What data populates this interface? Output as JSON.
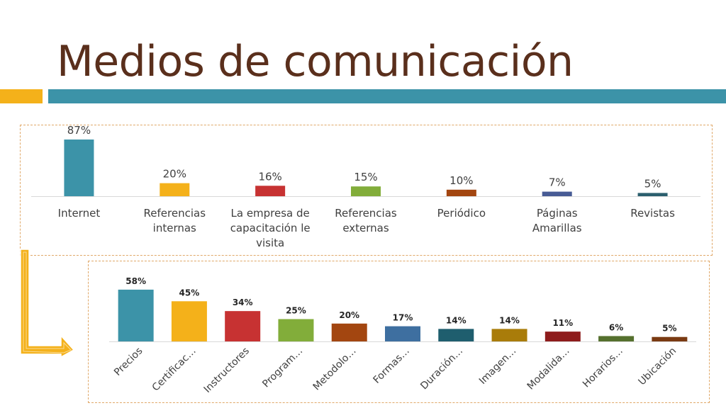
{
  "slide": {
    "title": "Medios de comunicación"
  },
  "colors": {
    "accent": "#f4b11a",
    "band": "#3c93a8",
    "title": "#5a2f1c",
    "arrow": "#f4b11a"
  },
  "chart_data": [
    {
      "type": "bar",
      "categories": [
        "Internet",
        "Referencias internas",
        "La empresa de capacitación le visita",
        "Referencias externas",
        "Periódico",
        "Páginas Amarillas",
        "Revistas"
      ],
      "category_lines": [
        [
          "Internet"
        ],
        [
          "Referencias",
          "internas"
        ],
        [
          "La empresa de",
          "capacitación le",
          "visita"
        ],
        [
          "Referencias",
          "externas"
        ],
        [
          "Periódico"
        ],
        [
          "Páginas",
          "Amarillas"
        ],
        [
          "Revistas"
        ]
      ],
      "values": [
        87,
        20,
        16,
        15,
        10,
        7,
        5
      ],
      "data_labels": [
        "87%",
        "20%",
        "16%",
        "15%",
        "10%",
        "7%",
        "5%"
      ],
      "colors": [
        "#3c93a8",
        "#f4b11a",
        "#c73232",
        "#82ad3a",
        "#a34610",
        "#475b95",
        "#2b5f6e"
      ],
      "ylim": [
        0,
        100
      ],
      "grid": false,
      "legend": "none"
    },
    {
      "type": "bar",
      "categories": [
        "Precios",
        "Certificac…",
        "Instructores",
        "Program…",
        "Metodolo…",
        "Formas…",
        "Duración…",
        "Imagen…",
        "Modalida…",
        "Horarios…",
        "Ubicación"
      ],
      "values": [
        58,
        45,
        34,
        25,
        20,
        17,
        14,
        14,
        11,
        6,
        5
      ],
      "data_labels": [
        "58%",
        "45%",
        "34%",
        "25%",
        "20%",
        "17%",
        "14%",
        "14%",
        "11%",
        "6%",
        "5%"
      ],
      "colors": [
        "#3c93a8",
        "#f4b11a",
        "#c73232",
        "#82ad3a",
        "#a34610",
        "#3e6fa0",
        "#1f5e6e",
        "#a97c0a",
        "#8e1c1c",
        "#55702e",
        "#7a3a12"
      ],
      "ylim": [
        0,
        100
      ],
      "grid": false,
      "legend": "none"
    }
  ]
}
